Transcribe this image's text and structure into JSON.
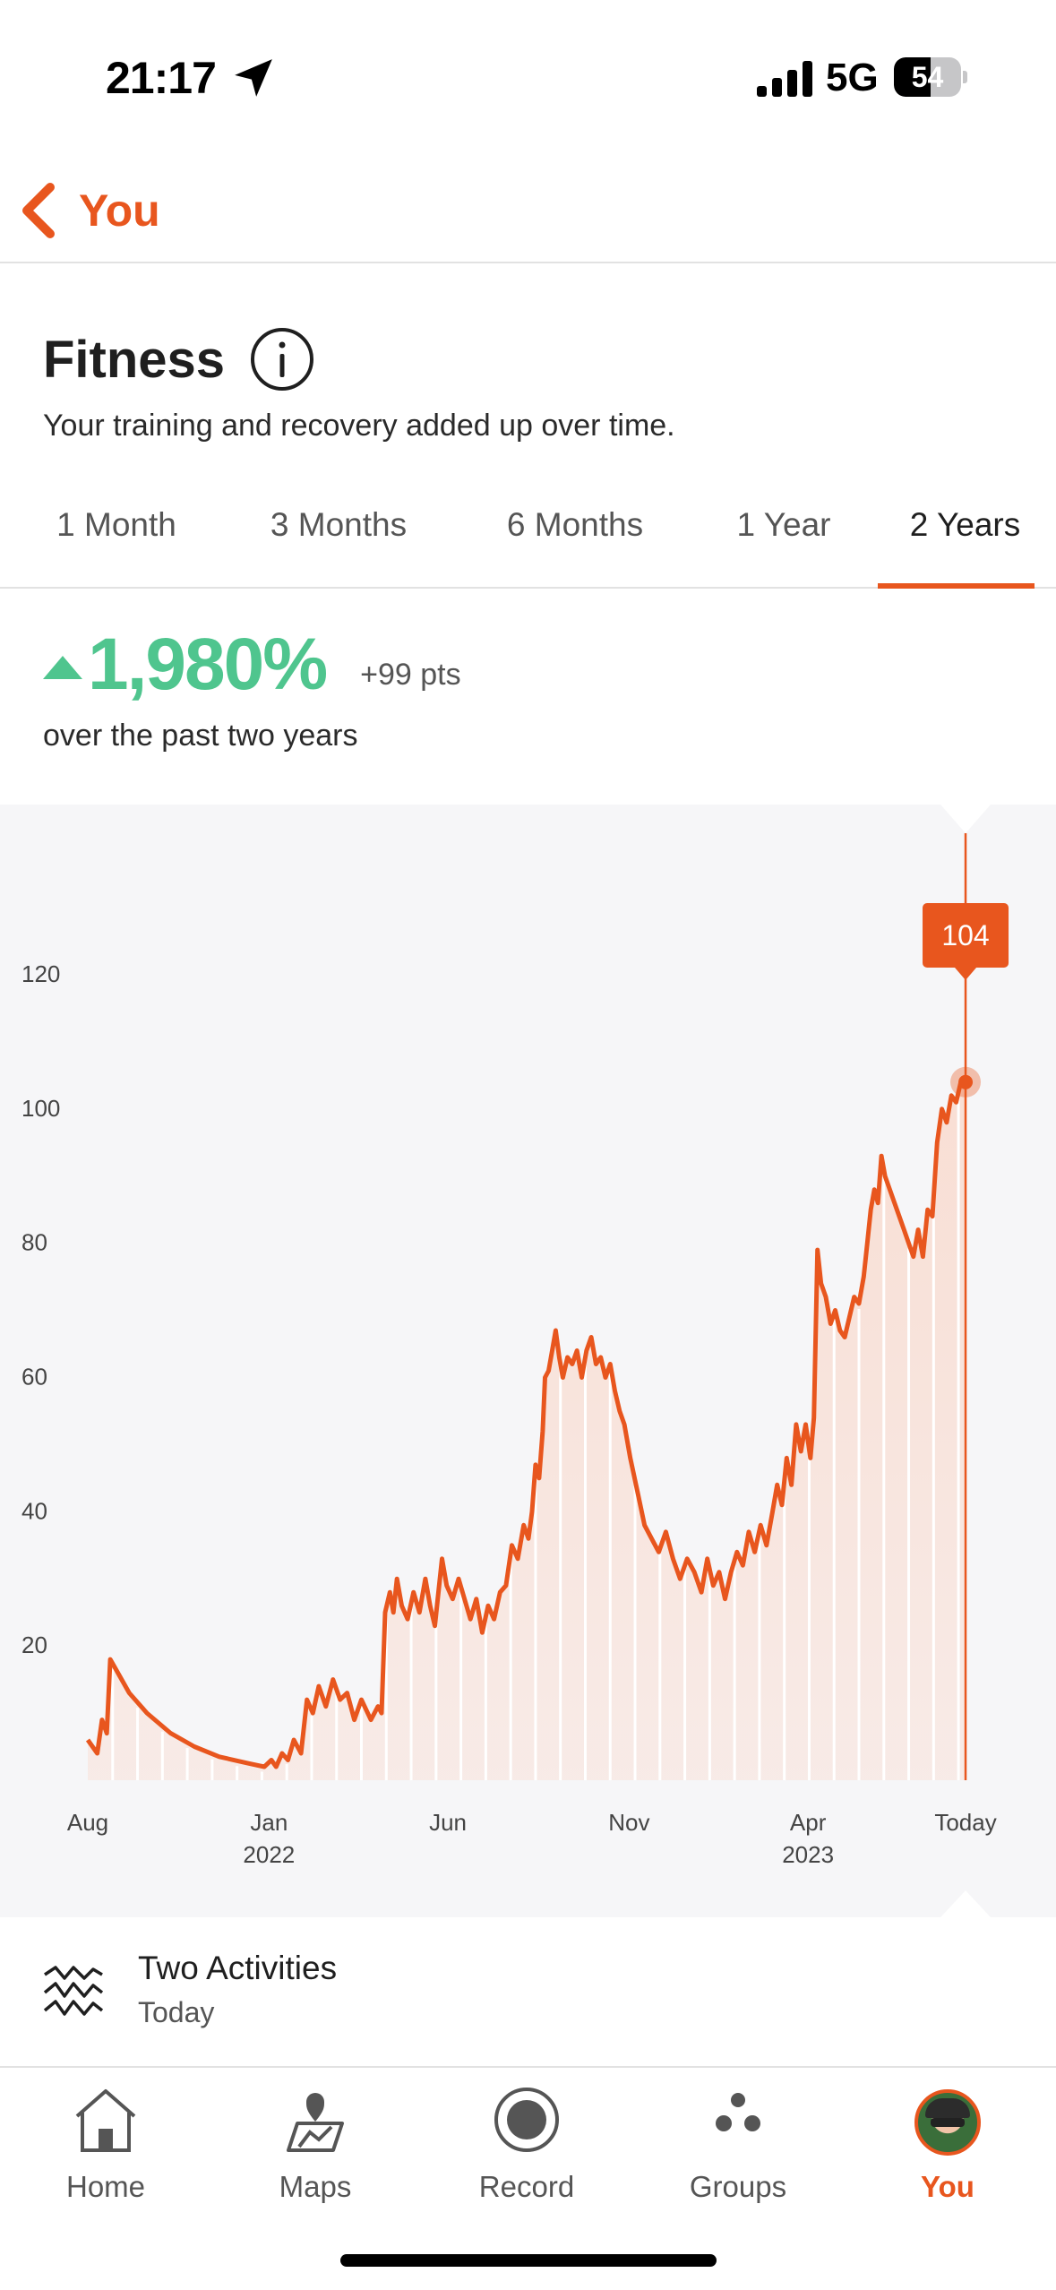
{
  "status_bar": {
    "time": "21:17",
    "network": "5G",
    "battery_level": "54",
    "battery_fraction": 0.54
  },
  "nav": {
    "back_label": "You"
  },
  "header": {
    "title": "Fitness",
    "subtitle": "Your training and recovery added up over time."
  },
  "tabs": [
    {
      "label": "1 Month",
      "active": false
    },
    {
      "label": "3 Months",
      "active": false
    },
    {
      "label": "6 Months",
      "active": false
    },
    {
      "label": "1 Year",
      "active": false
    },
    {
      "label": "2 Years",
      "active": true
    }
  ],
  "change": {
    "percent": "1,980%",
    "points": "+99 pts",
    "description": "over the past two years"
  },
  "colors": {
    "accent": "#e8561e",
    "positive": "#4fc58e",
    "chart_line": "#e8561e",
    "chart_fill": "#f9ddd2"
  },
  "chart_data": {
    "type": "area",
    "xlim": [
      "2021-08-01",
      "2023-08-15"
    ],
    "ylim": [
      0,
      130
    ],
    "yticks": [
      20,
      40,
      60,
      80,
      100,
      120
    ],
    "x_ticks": [
      {
        "label": "Aug",
        "sub": "",
        "date": "2021-08-01"
      },
      {
        "label": "Jan",
        "sub": "2022",
        "date": "2022-01-01"
      },
      {
        "label": "Jun",
        "sub": "",
        "date": "2022-06-01"
      },
      {
        "label": "Nov",
        "sub": "",
        "date": "2022-11-01"
      },
      {
        "label": "Apr",
        "sub": "2023",
        "date": "2023-04-01"
      },
      {
        "label": "Today",
        "sub": "",
        "date": "2023-08-12"
      }
    ],
    "grid": false,
    "legend": "none",
    "selected": {
      "date": "2023-08-12",
      "value": 104,
      "label": "104"
    },
    "points": [
      [
        "2021-08-01",
        6
      ],
      [
        "2021-08-09",
        4
      ],
      [
        "2021-08-13",
        9
      ],
      [
        "2021-08-17",
        7
      ],
      [
        "2021-08-20",
        18
      ],
      [
        "2021-09-05",
        13
      ],
      [
        "2021-09-20",
        10
      ],
      [
        "2021-10-10",
        7
      ],
      [
        "2021-10-30",
        5
      ],
      [
        "2021-11-20",
        3.5
      ],
      [
        "2021-12-15",
        2.5
      ],
      [
        "2021-12-28",
        2
      ],
      [
        "2022-01-03",
        3
      ],
      [
        "2022-01-07",
        2
      ],
      [
        "2022-01-12",
        4
      ],
      [
        "2022-01-17",
        3
      ],
      [
        "2022-01-22",
        6
      ],
      [
        "2022-01-28",
        4
      ],
      [
        "2022-02-02",
        12
      ],
      [
        "2022-02-07",
        10
      ],
      [
        "2022-02-12",
        14
      ],
      [
        "2022-02-18",
        11
      ],
      [
        "2022-02-24",
        15
      ],
      [
        "2022-03-02",
        12
      ],
      [
        "2022-03-08",
        13
      ],
      [
        "2022-03-14",
        9
      ],
      [
        "2022-03-20",
        12
      ],
      [
        "2022-03-28",
        9
      ],
      [
        "2022-04-03",
        11
      ],
      [
        "2022-04-06",
        10
      ],
      [
        "2022-04-09",
        25
      ],
      [
        "2022-04-13",
        28
      ],
      [
        "2022-04-16",
        25
      ],
      [
        "2022-04-19",
        30
      ],
      [
        "2022-04-23",
        26
      ],
      [
        "2022-04-28",
        24
      ],
      [
        "2022-05-03",
        28
      ],
      [
        "2022-05-08",
        25
      ],
      [
        "2022-05-13",
        30
      ],
      [
        "2022-05-17",
        26
      ],
      [
        "2022-05-21",
        23
      ],
      [
        "2022-05-24",
        28
      ],
      [
        "2022-05-27",
        33
      ],
      [
        "2022-05-31",
        29
      ],
      [
        "2022-06-05",
        27
      ],
      [
        "2022-06-10",
        30
      ],
      [
        "2022-06-15",
        27
      ],
      [
        "2022-06-20",
        24
      ],
      [
        "2022-06-25",
        27
      ],
      [
        "2022-06-30",
        22
      ],
      [
        "2022-07-05",
        26
      ],
      [
        "2022-07-10",
        24
      ],
      [
        "2022-07-15",
        28
      ],
      [
        "2022-07-20",
        29
      ],
      [
        "2022-07-25",
        35
      ],
      [
        "2022-07-30",
        33
      ],
      [
        "2022-08-04",
        38
      ],
      [
        "2022-08-08",
        36
      ],
      [
        "2022-08-11",
        40
      ],
      [
        "2022-08-14",
        47
      ],
      [
        "2022-08-17",
        45
      ],
      [
        "2022-08-20",
        52
      ],
      [
        "2022-08-22",
        60
      ],
      [
        "2022-08-25",
        61
      ],
      [
        "2022-08-28",
        64
      ],
      [
        "2022-08-31",
        67
      ],
      [
        "2022-09-03",
        63
      ],
      [
        "2022-09-06",
        60
      ],
      [
        "2022-09-10",
        63
      ],
      [
        "2022-09-14",
        62
      ],
      [
        "2022-09-18",
        64
      ],
      [
        "2022-09-22",
        60
      ],
      [
        "2022-09-26",
        64
      ],
      [
        "2022-09-30",
        66
      ],
      [
        "2022-10-04",
        62
      ],
      [
        "2022-10-08",
        63
      ],
      [
        "2022-10-12",
        60
      ],
      [
        "2022-10-16",
        62
      ],
      [
        "2022-10-20",
        58
      ],
      [
        "2022-10-24",
        55
      ],
      [
        "2022-10-28",
        53
      ],
      [
        "2022-11-02",
        48
      ],
      [
        "2022-11-08",
        43
      ],
      [
        "2022-11-14",
        38
      ],
      [
        "2022-11-20",
        36
      ],
      [
        "2022-11-26",
        34
      ],
      [
        "2022-12-02",
        37
      ],
      [
        "2022-12-08",
        33
      ],
      [
        "2022-12-14",
        30
      ],
      [
        "2022-12-20",
        33
      ],
      [
        "2022-12-26",
        31
      ],
      [
        "2023-01-01",
        28
      ],
      [
        "2023-01-06",
        33
      ],
      [
        "2023-01-11",
        29
      ],
      [
        "2023-01-16",
        31
      ],
      [
        "2023-01-21",
        27
      ],
      [
        "2023-01-26",
        31
      ],
      [
        "2023-01-31",
        34
      ],
      [
        "2023-02-05",
        32
      ],
      [
        "2023-02-10",
        37
      ],
      [
        "2023-02-15",
        34
      ],
      [
        "2023-02-20",
        38
      ],
      [
        "2023-02-25",
        35
      ],
      [
        "2023-03-02",
        40
      ],
      [
        "2023-03-06",
        44
      ],
      [
        "2023-03-10",
        41
      ],
      [
        "2023-03-14",
        48
      ],
      [
        "2023-03-18",
        44
      ],
      [
        "2023-03-22",
        53
      ],
      [
        "2023-03-26",
        49
      ],
      [
        "2023-03-30",
        53
      ],
      [
        "2023-04-03",
        48
      ],
      [
        "2023-04-06",
        54
      ],
      [
        "2023-04-09",
        79
      ],
      [
        "2023-04-12",
        74
      ],
      [
        "2023-04-16",
        72
      ],
      [
        "2023-04-20",
        68
      ],
      [
        "2023-04-24",
        70
      ],
      [
        "2023-04-28",
        67
      ],
      [
        "2023-05-02",
        66
      ],
      [
        "2023-05-06",
        69
      ],
      [
        "2023-05-10",
        72
      ],
      [
        "2023-05-14",
        71
      ],
      [
        "2023-05-18",
        75
      ],
      [
        "2023-05-21",
        80
      ],
      [
        "2023-05-24",
        85
      ],
      [
        "2023-05-27",
        88
      ],
      [
        "2023-05-30",
        86
      ],
      [
        "2023-06-02",
        93
      ],
      [
        "2023-06-05",
        90
      ],
      [
        "2023-06-09",
        88
      ],
      [
        "2023-06-13",
        86
      ],
      [
        "2023-06-17",
        84
      ],
      [
        "2023-06-21",
        82
      ],
      [
        "2023-06-25",
        80
      ],
      [
        "2023-06-29",
        78
      ],
      [
        "2023-07-03",
        82
      ],
      [
        "2023-07-07",
        78
      ],
      [
        "2023-07-11",
        85
      ],
      [
        "2023-07-15",
        84
      ],
      [
        "2023-07-19",
        95
      ],
      [
        "2023-07-23",
        100
      ],
      [
        "2023-07-27",
        98
      ],
      [
        "2023-07-31",
        102
      ],
      [
        "2023-08-04",
        101
      ],
      [
        "2023-08-08",
        104
      ],
      [
        "2023-08-12",
        104
      ]
    ]
  },
  "activity": {
    "title": "Two Activities",
    "subtitle": "Today",
    "icon": "activity-wave-icon"
  },
  "tab_bar": [
    {
      "label": "Home",
      "icon": "home-icon",
      "active": false
    },
    {
      "label": "Maps",
      "icon": "maps-icon",
      "active": false
    },
    {
      "label": "Record",
      "icon": "record-icon",
      "active": false
    },
    {
      "label": "Groups",
      "icon": "groups-icon",
      "active": false
    },
    {
      "label": "You",
      "icon": "avatar",
      "active": true
    }
  ]
}
